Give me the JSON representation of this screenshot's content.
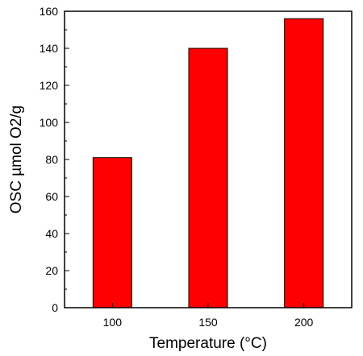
{
  "chart_data": {
    "type": "bar",
    "categories": [
      "100",
      "150",
      "200"
    ],
    "values": [
      81,
      140,
      156
    ],
    "xlabel": "Temperature (°C)",
    "ylabel": "OSC µmol O2/g",
    "ylim": [
      0,
      160
    ],
    "yticks": [
      0,
      20,
      40,
      60,
      80,
      100,
      120,
      140,
      160
    ],
    "bar_color": "#ff0000",
    "grid": false,
    "legend": "none"
  }
}
